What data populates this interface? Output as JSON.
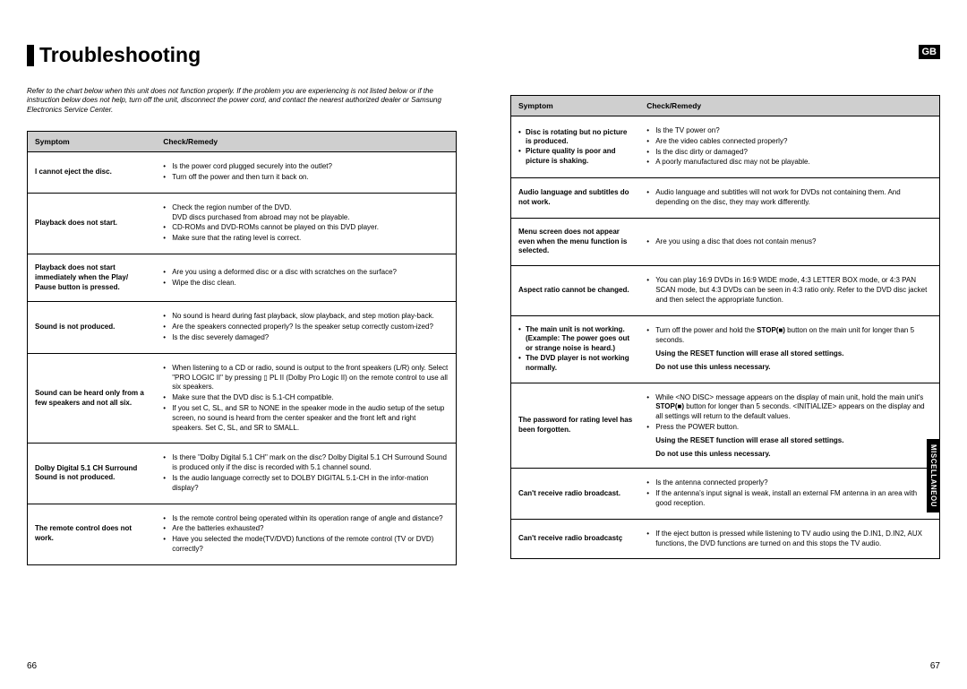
{
  "title": "Troubleshooting",
  "lang_badge": "GB",
  "side_tab": "MISCELLANEOU",
  "intro": "Refer to the chart below when this unit does not function properly. If the problem you are experiencing is not listed below or if the instruction below does not help, turn off the unit, disconnect the power cord, and contact the nearest authorized dealer or Samsung Electronics Service Center.",
  "headers": {
    "symptom": "Symptom",
    "remedy": "Check/Remedy"
  },
  "page_left_num": "66",
  "page_right_num": "67",
  "left": {
    "rows": [
      {
        "symptom_plain": "I cannot eject the disc.",
        "remedy_items": [
          "Is the power cord plugged securely into the outlet?",
          "Turn off the power and then turn it back on."
        ]
      },
      {
        "symptom_plain": "Playback does not start.",
        "remedy_items": [
          "Check the region number of the DVD.",
          "CD-ROMs and DVD-ROMs cannot be played on this DVD player.",
          "Make sure that the rating level is correct."
        ],
        "remedy_sub_after_0": "DVD discs purchased from abroad may not be playable."
      },
      {
        "symptom_plain": "Playback does not start immediately when the Play/ Pause button is pressed.",
        "remedy_items": [
          "Are you using a deformed disc or a disc with scratches on the surface?",
          "Wipe the disc clean."
        ]
      },
      {
        "symptom_plain": "Sound is not produced.",
        "remedy_items": [
          "No sound is heard during fast playback, slow playback, and step motion play-back.",
          "Are the speakers connected properly? Is the speaker setup correctly custom-ized?",
          "Is the disc severely damaged?"
        ]
      },
      {
        "symptom_plain": "Sound can be heard only from a few speakers and not all six.",
        "remedy_items": [
          "When listening to a CD or radio, sound is output to the front speakers (L/R) only. Select \"PRO LOGIC II\" by pressing ▯ PL II (Dolby Pro Logic II) on the remote control to use all six speakers.",
          "Make sure that the DVD disc is 5.1-CH compatible.",
          "If you set C, SL, and SR to NONE in the speaker mode in the audio setup of the setup screen, no sound is heard from the center speaker and the front left and right speakers. Set C, SL, and SR to SMALL."
        ]
      },
      {
        "symptom_plain": "Dolby Digital 5.1 CH Surround Sound is not produced.",
        "remedy_items": [
          "Is there \"Dolby Digital 5.1 CH\" mark on the disc? Dolby Digital 5.1 CH Surround Sound is produced only if the disc is recorded with 5.1 channel sound.",
          "Is the audio language correctly set to DOLBY DIGITAL 5.1-CH in the infor-mation display?"
        ]
      },
      {
        "symptom_plain": "The remote control does not work.",
        "remedy_items": [
          "Is the remote control being operated within its operation range of angle and distance?",
          "Are the batteries exhausted?",
          "Have you selected the mode(TV/DVD) functions of the remote control (TV or DVD) correctly?"
        ]
      }
    ]
  },
  "right": {
    "rows": [
      {
        "symptom_bullets": [
          "Disc is rotating but no picture is produced.",
          "Picture quality is poor and picture is shaking."
        ],
        "remedy_items": [
          "Is the TV power on?",
          "Are the video cables connected properly?",
          "Is the disc dirty or damaged?",
          "A poorly manufactured disc may not be playable."
        ]
      },
      {
        "symptom_plain": "Audio language and subtitles do not work.",
        "remedy_items": [
          "Audio language and subtitles will not work for DVDs not containing them. And depending on the disc, they may work differently."
        ]
      },
      {
        "symptom_plain": "Menu screen does not appear even when the menu function is selected.",
        "remedy_items": [
          "Are you using a disc that does not contain menus?"
        ]
      },
      {
        "symptom_plain": "Aspect ratio cannot be changed.",
        "remedy_items": [
          "You can play 16:9 DVDs in 16:9 WIDE mode, 4:3 LETTER BOX mode, or 4:3 PAN SCAN mode, but 4:3 DVDs can be seen in 4:3 ratio only. Refer to the DVD disc jacket and then select the appropriate function."
        ]
      },
      {
        "symptom_bullets": [
          "The main unit is not working. (Example: The power goes out or strange noise is heard.)",
          "The DVD player is not working normally."
        ],
        "remedy_html": "stop_hold",
        "remedy_stop_text_a": "Turn off the power and hold the ",
        "remedy_stop_text_b": "STOP(■)",
        "remedy_stop_text_c": " button on the main unit for longer than 5 seconds.",
        "bold_note_1": "Using the RESET function will erase all stored settings.",
        "bold_note_2": "Do not use this unless necessary."
      },
      {
        "symptom_plain": "The password for rating level has been forgotten.",
        "remedy_html": "password",
        "pw_a": "While <NO DISC> message appears on the display of main unit, hold the main unit's ",
        "pw_b": "STOP(■)",
        "pw_c": " button for longer than 5 seconds. <INITIALIZE> appears on the display and all settings will return to the default values.",
        "pw_press": "Press the POWER button.",
        "bold_note_1": "Using the RESET function will erase all stored settings.",
        "bold_note_2": "Do not use this unless necessary."
      },
      {
        "symptom_plain": "Can't receive radio broadcast.",
        "remedy_items": [
          "Is the antenna connected properly?",
          "If the antenna's input signal is weak, install an external FM antenna in an area with good reception."
        ]
      },
      {
        "symptom_plain": "Can't receive radio broadcastç",
        "remedy_items": [
          "If the eject button is pressed while listening to TV audio using the D.IN1, D.IN2, AUX functions, the DVD functions are turned on and this stops the TV audio."
        ]
      }
    ]
  }
}
